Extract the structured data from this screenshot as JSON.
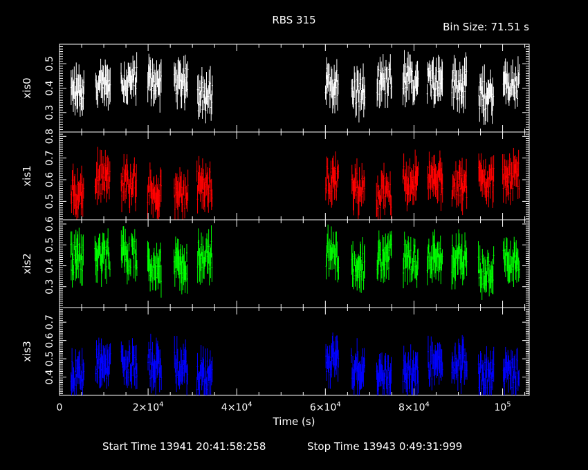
{
  "chart_data": {
    "type": "line",
    "title": "RBS 315",
    "bin_size": "Bin Size: 71.51 s",
    "xlabel": "Time (s)",
    "xlim": [
      0,
      106000
    ],
    "x_ticks": [
      {
        "value": 0,
        "label": "0"
      },
      {
        "value": 20000,
        "label": "2×10",
        "exp": "4"
      },
      {
        "value": 40000,
        "label": "4×10",
        "exp": "4"
      },
      {
        "value": 60000,
        "label": "6×10",
        "exp": "4"
      },
      {
        "value": 80000,
        "label": "8×10",
        "exp": "4"
      },
      {
        "value": 100000,
        "label": "10",
        "exp": "5"
      }
    ],
    "start_time": "Start Time 13941 20:41:58:258",
    "stop_time": "Stop Time 13943  0:49:31:999",
    "observation_windows": [
      [
        2500,
        5500
      ],
      [
        8000,
        11500
      ],
      [
        13800,
        17500
      ],
      [
        19800,
        23000
      ],
      [
        25800,
        29000
      ],
      [
        31000,
        34500
      ],
      [
        60000,
        63000
      ],
      [
        65800,
        69000
      ],
      [
        71500,
        75000
      ],
      [
        77500,
        81000
      ],
      [
        83000,
        86500
      ],
      [
        88500,
        92000
      ],
      [
        94500,
        98000
      ],
      [
        100000,
        103800
      ]
    ],
    "series": [
      {
        "name": "xis0",
        "color": "#ffffff",
        "mean": 0.4,
        "ylim": [
          0.22,
          0.58
        ],
        "ticks": [
          {
            "value": 0.5,
            "label": "0.5"
          },
          {
            "value": 0.4,
            "label": "0.4"
          },
          {
            "value": 0.3,
            "label": "0.3"
          }
        ]
      },
      {
        "name": "xis1",
        "color": "#ff0000",
        "mean": 0.57,
        "ylim": [
          0.415,
          0.82
        ],
        "ticks": [
          {
            "value": 0.8,
            "label": "0.8"
          },
          {
            "value": 0.7,
            "label": "0.7"
          },
          {
            "value": 0.6,
            "label": "0.6"
          },
          {
            "value": 0.5,
            "label": "0.5"
          }
        ]
      },
      {
        "name": "xis2",
        "color": "#00ff00",
        "mean": 0.42,
        "ylim": [
          0.2,
          0.62
        ],
        "ticks": [
          {
            "value": 0.6,
            "label": "0.6"
          },
          {
            "value": 0.5,
            "label": "0.5"
          },
          {
            "value": 0.4,
            "label": "0.4"
          },
          {
            "value": 0.3,
            "label": "0.3"
          }
        ]
      },
      {
        "name": "xis3",
        "color": "#0000ff",
        "mean": 0.45,
        "ylim": [
          0.3,
          0.78
        ],
        "ticks": [
          {
            "value": 0.7,
            "label": "0.7"
          },
          {
            "value": 0.6,
            "label": "0.6"
          },
          {
            "value": 0.5,
            "label": "0.5"
          },
          {
            "value": 0.4,
            "label": "0.4"
          }
        ]
      }
    ]
  }
}
